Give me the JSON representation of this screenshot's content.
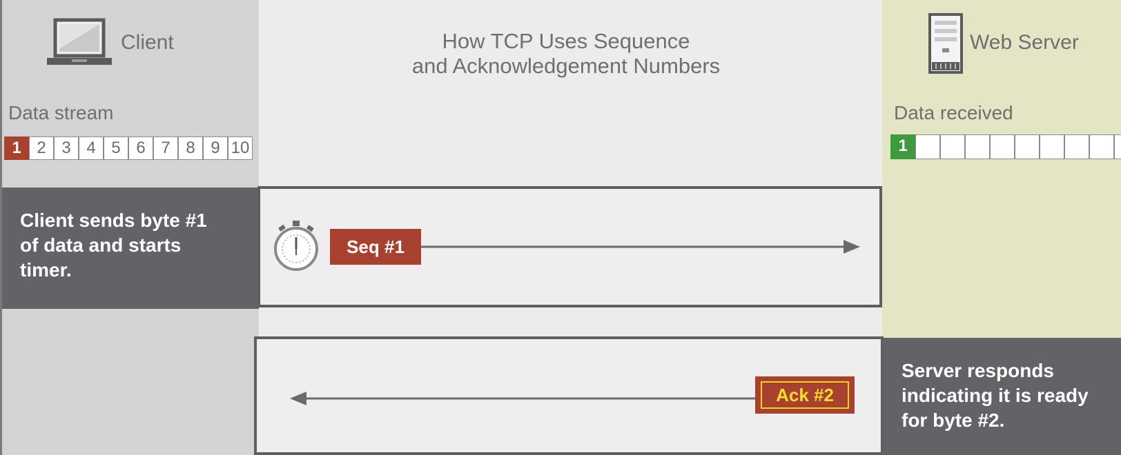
{
  "title": {
    "line1": "How TCP Uses Sequence",
    "line2": "and Acknowledgement Numbers"
  },
  "client": {
    "label": "Client",
    "icon": "laptop-icon",
    "stream_label": "Data stream",
    "stream_cells": [
      "1",
      "2",
      "3",
      "4",
      "5",
      "6",
      "7",
      "8",
      "9",
      "10"
    ],
    "description": "Client sends byte #1 of data and starts timer."
  },
  "server": {
    "label": "Web Server",
    "icon": "server-icon",
    "received_label": "Data received",
    "received_cells": [
      "1",
      "",
      "",
      "",
      "",
      "",
      "",
      "",
      "",
      ""
    ],
    "description": "Server responds indicating it is ready for byte #2."
  },
  "messages": {
    "seq_label": "Seq #1",
    "ack_label": "Ack #2",
    "timer_icon": "stopwatch-icon"
  },
  "colors": {
    "seq_red": "#a8412f",
    "received_green": "#3f9a3f",
    "ack_yellow": "#f3dc2c",
    "panel_dark": "#636367",
    "server_bg": "#e4e5c4"
  }
}
